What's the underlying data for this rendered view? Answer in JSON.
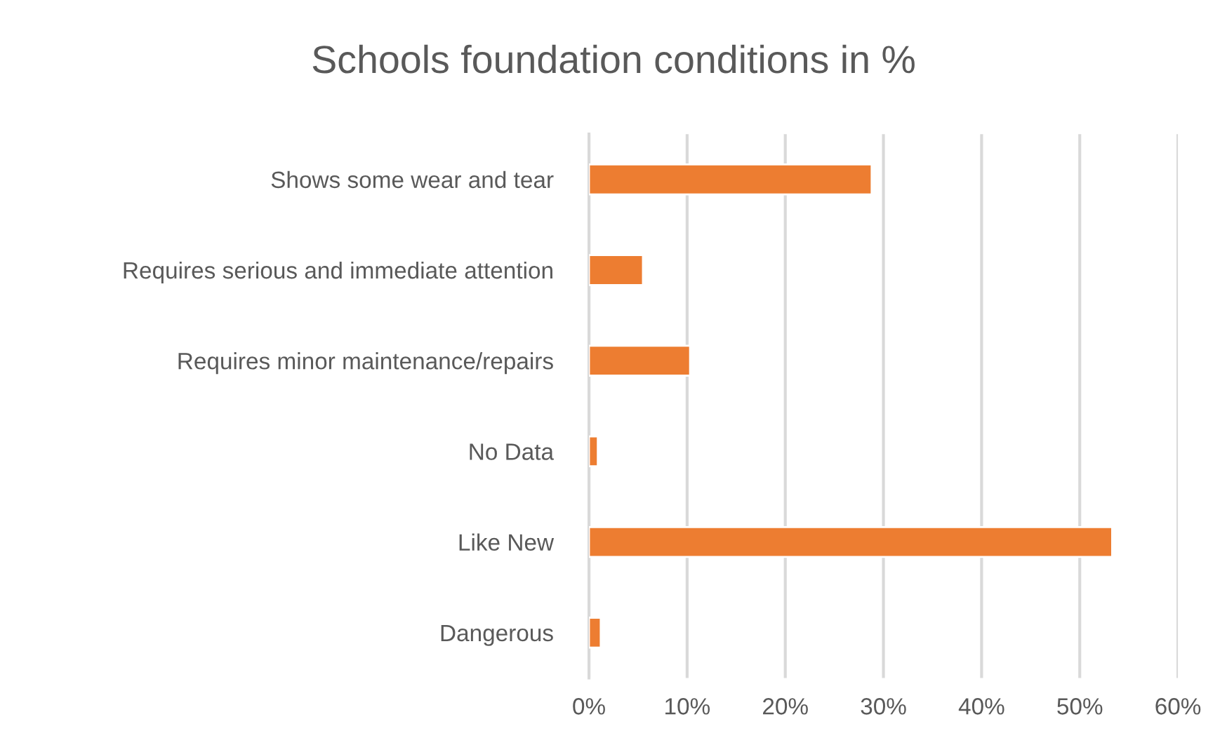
{
  "chart_data": {
    "type": "bar",
    "orientation": "horizontal",
    "title": "Schools foundation conditions in %",
    "categories": [
      "Shows some wear and tear",
      "Requires serious and immediate attention",
      "Requires minor maintenance/repairs",
      "No Data",
      "Like New",
      "Dangerous"
    ],
    "values": [
      28.8,
      5.5,
      10.3,
      0.9,
      53.3,
      1.2
    ],
    "color": "#ed7d31",
    "xlim": [
      0,
      60
    ],
    "xticks": [
      {
        "value": 0,
        "label": "0%"
      },
      {
        "value": 10,
        "label": "10%"
      },
      {
        "value": 20,
        "label": "20%"
      },
      {
        "value": 30,
        "label": "30%"
      },
      {
        "value": 40,
        "label": "40%"
      },
      {
        "value": 50,
        "label": "50%"
      },
      {
        "value": 60,
        "label": "60%"
      }
    ],
    "grid": "x",
    "legend": false
  }
}
